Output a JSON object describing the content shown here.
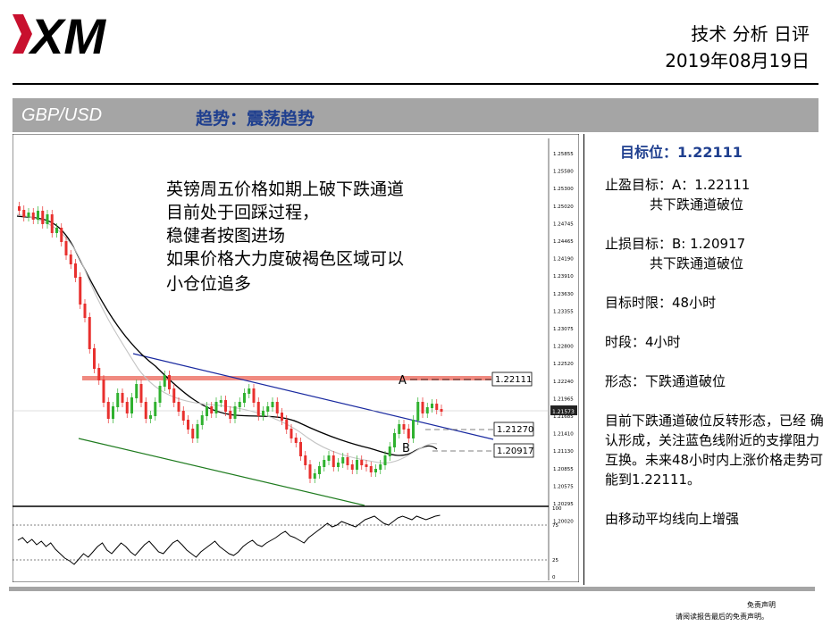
{
  "header": {
    "logo_text": "XM",
    "title": "技术 分析 日评",
    "date": "2019年08月19日"
  },
  "bar": {
    "pair": "GBP/USD",
    "trend": "趋势：震荡趋势"
  },
  "chart_data": {
    "type": "candlestick",
    "annotation_lines": [
      "英镑周五价格如期上破下跌通道",
      "目前处于回踩过程，",
      "稳健者按图进场",
      "如果价格大力度破褐色区域可以",
      "小仓位追多"
    ],
    "price_axis": [
      "1.25855",
      "1.25580",
      "1.25300",
      "1.25020",
      "1.24745",
      "1.24465",
      "1.24190",
      "1.23910",
      "1.23630",
      "1.23355",
      "1.23075",
      "1.22800",
      "1.22520",
      "1.22240",
      "1.21965",
      "1.21685",
      "1.21410",
      "1.21130",
      "1.20855",
      "1.20575",
      "1.20295",
      "1.20020"
    ],
    "last_price": "1.21573",
    "levels": [
      {
        "label": "A",
        "value": "1.22111"
      },
      {
        "label": "",
        "value": "1.21270"
      },
      {
        "label": "B",
        "value": "1.20917"
      }
    ],
    "indicator_axis": [
      "100",
      "75",
      "25",
      "0"
    ],
    "colors": {
      "bull": "#2fb12f",
      "bear": "#e8302e",
      "resistance": "#f08a80",
      "channel_top": "#1a2aa0",
      "channel_bottom": "#1e7b1e"
    }
  },
  "panel": {
    "target_label": "目标位：1.22111",
    "take_profit": "止盈目标：A：1.22111",
    "take_profit_sub": "共下跌通道破位",
    "stop_loss": "止损目标：B:  1.20917",
    "stop_loss_sub": "共下跌通道破位",
    "time_limit": "目标时限：48小时",
    "period": "时段：4小时",
    "pattern": "形态：下跌通道破位",
    "commentary": "目前下跌通道破位反转形态，已经 确认形成，关注蓝色线附近的支撑阻力互换。未来48小时内上涨价格走势可能到1.22111。",
    "note": "由移动平均线向上增强"
  },
  "footer": {
    "disclaimer_title": "免责声明",
    "disclaimer_text": "请阅读报告最后的免责声明。"
  }
}
